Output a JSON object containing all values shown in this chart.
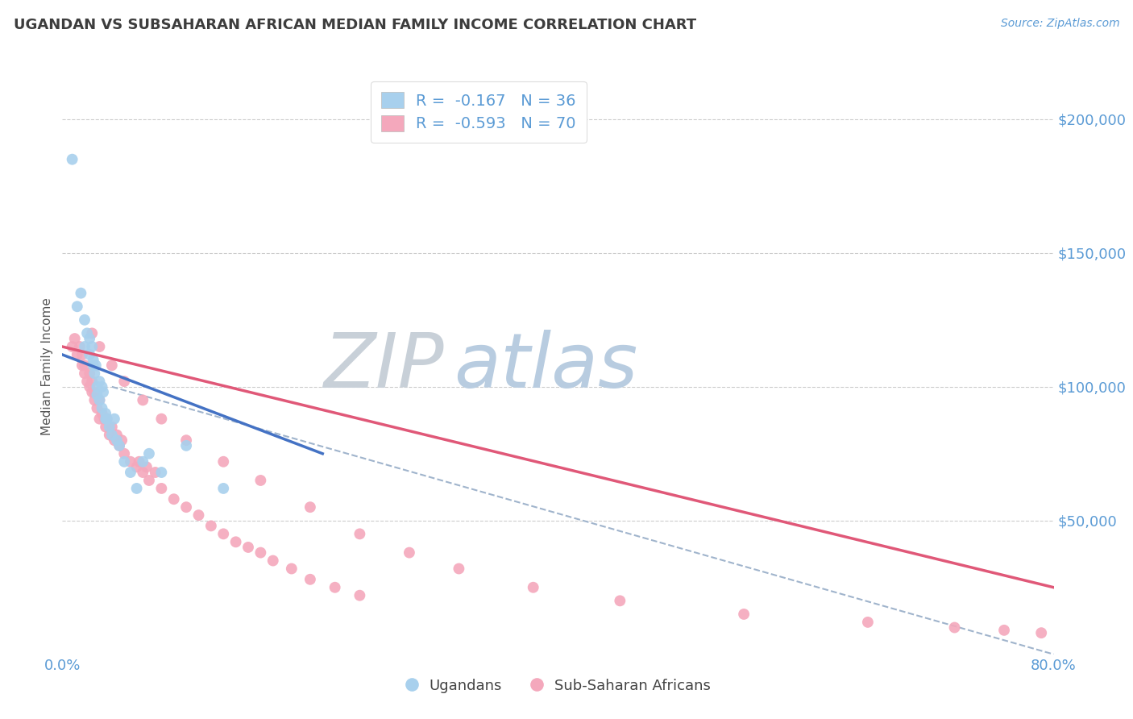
{
  "title": "UGANDAN VS SUBSAHARAN AFRICAN MEDIAN FAMILY INCOME CORRELATION CHART",
  "source": "Source: ZipAtlas.com",
  "ylabel": "Median Family Income",
  "ytick_labels": [
    "$200,000",
    "$150,000",
    "$100,000",
    "$50,000"
  ],
  "ytick_values": [
    200000,
    150000,
    100000,
    50000
  ],
  "ylim": [
    0,
    215000
  ],
  "xlim": [
    0.0,
    0.8
  ],
  "title_color": "#3d3d3d",
  "axis_color": "#5b9bd5",
  "grid_color": "#cccccc",
  "blue_dot_color": "#a8d0ed",
  "pink_dot_color": "#f4a8bc",
  "blue_line_color": "#4472c4",
  "pink_line_color": "#e05878",
  "dashed_line_color": "#a0b4cc",
  "ugandan_x": [
    0.008,
    0.012,
    0.015,
    0.018,
    0.018,
    0.02,
    0.022,
    0.022,
    0.024,
    0.025,
    0.025,
    0.026,
    0.027,
    0.028,
    0.028,
    0.03,
    0.03,
    0.032,
    0.032,
    0.033,
    0.035,
    0.035,
    0.036,
    0.038,
    0.04,
    0.042,
    0.044,
    0.046,
    0.05,
    0.055,
    0.06,
    0.065,
    0.07,
    0.08,
    0.1,
    0.13
  ],
  "ugandan_y": [
    185000,
    130000,
    135000,
    125000,
    115000,
    120000,
    118000,
    112000,
    115000,
    110000,
    108000,
    105000,
    108000,
    100000,
    97000,
    102000,
    95000,
    100000,
    92000,
    98000,
    88000,
    90000,
    88000,
    85000,
    82000,
    88000,
    80000,
    78000,
    72000,
    68000,
    62000,
    72000,
    75000,
    68000,
    78000,
    62000
  ],
  "subsaharan_x": [
    0.008,
    0.01,
    0.012,
    0.014,
    0.016,
    0.016,
    0.018,
    0.018,
    0.02,
    0.022,
    0.022,
    0.024,
    0.024,
    0.026,
    0.026,
    0.028,
    0.03,
    0.03,
    0.032,
    0.034,
    0.035,
    0.036,
    0.038,
    0.04,
    0.042,
    0.044,
    0.046,
    0.048,
    0.05,
    0.055,
    0.06,
    0.062,
    0.065,
    0.068,
    0.07,
    0.075,
    0.08,
    0.09,
    0.1,
    0.11,
    0.12,
    0.13,
    0.14,
    0.15,
    0.16,
    0.17,
    0.185,
    0.2,
    0.22,
    0.24,
    0.024,
    0.03,
    0.04,
    0.05,
    0.065,
    0.08,
    0.1,
    0.13,
    0.16,
    0.2,
    0.24,
    0.28,
    0.32,
    0.38,
    0.45,
    0.55,
    0.65,
    0.72,
    0.76,
    0.79
  ],
  "subsaharan_y": [
    115000,
    118000,
    112000,
    115000,
    108000,
    112000,
    105000,
    108000,
    102000,
    105000,
    100000,
    98000,
    102000,
    95000,
    98000,
    92000,
    95000,
    88000,
    90000,
    88000,
    85000,
    88000,
    82000,
    85000,
    80000,
    82000,
    78000,
    80000,
    75000,
    72000,
    70000,
    72000,
    68000,
    70000,
    65000,
    68000,
    62000,
    58000,
    55000,
    52000,
    48000,
    45000,
    42000,
    40000,
    38000,
    35000,
    32000,
    28000,
    25000,
    22000,
    120000,
    115000,
    108000,
    102000,
    95000,
    88000,
    80000,
    72000,
    65000,
    55000,
    45000,
    38000,
    32000,
    25000,
    20000,
    15000,
    12000,
    10000,
    9000,
    8000
  ],
  "blue_line_x0": 0.0,
  "blue_line_y0": 112000,
  "blue_line_x1": 0.21,
  "blue_line_y1": 75000,
  "pink_line_x0": 0.0,
  "pink_line_y0": 115000,
  "pink_line_x1": 0.8,
  "pink_line_y1": 25000,
  "dash_line_x0": 0.04,
  "dash_line_y0": 100000,
  "dash_line_x1": 0.8,
  "dash_line_y1": 0
}
